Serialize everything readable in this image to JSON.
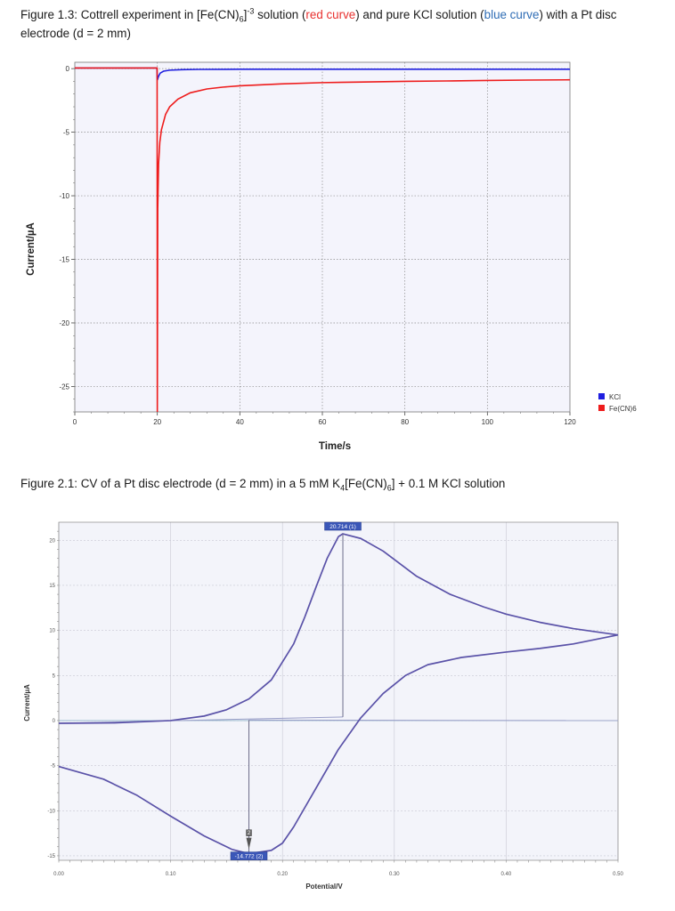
{
  "captions": {
    "fig1": {
      "prefix": "Figure 1.3: Cottrell experiment in [Fe(CN)",
      "sub": "6",
      "mid": "]",
      "sup": "-3",
      "after_sup": " solution (",
      "red_text": "red curve",
      "after_red": ") and pure KCl solution (",
      "blue_text": "blue curve",
      "after_blue": ") with a Pt disc electrode (d = 2 mm)"
    },
    "fig2": {
      "prefix": "Figure 2.1: CV of a Pt disc electrode (d = 2 mm) in a 5 mM K",
      "sub1": "4",
      "mid": "[Fe(CN)",
      "sub2": "6",
      "suffix": "] + 0.1 M KCl solution"
    }
  },
  "chart_data": [
    {
      "type": "line",
      "xlabel": "Time/s",
      "ylabel": "Current/µA",
      "xlim": [
        0,
        120
      ],
      "ylim": [
        -27,
        0.5
      ],
      "xticks": [
        0,
        20,
        40,
        60,
        80,
        100,
        120
      ],
      "yticks": [
        0,
        -5,
        -10,
        -15,
        -20,
        -25
      ],
      "grid": true,
      "legend_position": "right",
      "series": [
        {
          "name": "KCl",
          "color": "#1f1fe0",
          "points": [
            [
              0,
              0.05
            ],
            [
              19.9,
              0.05
            ],
            [
              20.0,
              -0.9
            ],
            [
              20.3,
              -0.6
            ],
            [
              20.7,
              -0.35
            ],
            [
              21.5,
              -0.2
            ],
            [
              23,
              -0.12
            ],
            [
              26,
              -0.08
            ],
            [
              30,
              -0.06
            ],
            [
              40,
              -0.05
            ],
            [
              60,
              -0.05
            ],
            [
              80,
              -0.05
            ],
            [
              100,
              -0.05
            ],
            [
              120,
              -0.05
            ]
          ]
        },
        {
          "name": "Fe(CN)6",
          "color": "#ee1c1c",
          "points": [
            [
              0,
              0.05
            ],
            [
              19.95,
              0.05
            ],
            [
              20.0,
              -27
            ],
            [
              20.1,
              -11.0
            ],
            [
              20.3,
              -7.5
            ],
            [
              20.6,
              -5.8
            ],
            [
              21,
              -4.8
            ],
            [
              22,
              -3.6
            ],
            [
              23,
              -3.0
            ],
            [
              25,
              -2.4
            ],
            [
              28,
              -1.9
            ],
            [
              32,
              -1.6
            ],
            [
              36,
              -1.45
            ],
            [
              40,
              -1.35
            ],
            [
              50,
              -1.2
            ],
            [
              60,
              -1.1
            ],
            [
              70,
              -1.05
            ],
            [
              80,
              -1.0
            ],
            [
              90,
              -0.97
            ],
            [
              100,
              -0.93
            ],
            [
              110,
              -0.9
            ],
            [
              120,
              -0.88
            ]
          ]
        }
      ]
    },
    {
      "type": "line",
      "xlabel": "Potential/V",
      "ylabel": "Current/µA",
      "xlim": [
        0,
        0.5
      ],
      "ylim": [
        -15.5,
        22
      ],
      "xticks": [
        "0.00",
        "0.10",
        "0.20",
        "0.30",
        "0.40",
        "0.50"
      ],
      "yticks": [
        20,
        15,
        10,
        5,
        0,
        -5,
        -10,
        -15
      ],
      "grid": true,
      "color": "#5a52a8",
      "forward": [
        [
          0,
          -0.3
        ],
        [
          0.05,
          -0.25
        ],
        [
          0.1,
          0.0
        ],
        [
          0.13,
          0.5
        ],
        [
          0.15,
          1.2
        ],
        [
          0.17,
          2.4
        ],
        [
          0.19,
          4.5
        ],
        [
          0.21,
          8.5
        ],
        [
          0.22,
          11.5
        ],
        [
          0.23,
          14.8
        ],
        [
          0.24,
          18.0
        ],
        [
          0.25,
          20.4
        ],
        [
          0.254,
          20.714
        ],
        [
          0.27,
          20.2
        ],
        [
          0.29,
          18.8
        ],
        [
          0.32,
          16.0
        ],
        [
          0.35,
          14.0
        ],
        [
          0.38,
          12.6
        ],
        [
          0.4,
          11.8
        ],
        [
          0.43,
          10.9
        ],
        [
          0.46,
          10.2
        ],
        [
          0.5,
          9.5
        ]
      ],
      "reverse": [
        [
          0.5,
          9.5
        ],
        [
          0.46,
          8.5
        ],
        [
          0.43,
          8.0
        ],
        [
          0.4,
          7.6
        ],
        [
          0.36,
          7.0
        ],
        [
          0.33,
          6.2
        ],
        [
          0.31,
          5.0
        ],
        [
          0.29,
          3.0
        ],
        [
          0.27,
          0.3
        ],
        [
          0.25,
          -3.2
        ],
        [
          0.23,
          -7.5
        ],
        [
          0.21,
          -11.8
        ],
        [
          0.2,
          -13.6
        ],
        [
          0.19,
          -14.4
        ],
        [
          0.17,
          -14.772
        ],
        [
          0.155,
          -14.3
        ],
        [
          0.13,
          -12.8
        ],
        [
          0.1,
          -10.6
        ],
        [
          0.07,
          -8.3
        ],
        [
          0.04,
          -6.5
        ],
        [
          0,
          -5.1
        ]
      ],
      "baselines": [
        [
          [
            0.0,
            -0.3
          ],
          [
            0.254,
            0.4
          ]
        ],
        [
          [
            0.17,
            0.05
          ],
          [
            0.5,
            0.0
          ]
        ]
      ],
      "peaks": [
        {
          "x": 0.254,
          "y": 20.714,
          "label": "20.714 (1)",
          "marker": "1",
          "base": 0.4
        },
        {
          "x": 0.17,
          "y": -14.772,
          "label": "-14.772 (2)",
          "marker": "2",
          "base": 0.05
        }
      ]
    }
  ]
}
